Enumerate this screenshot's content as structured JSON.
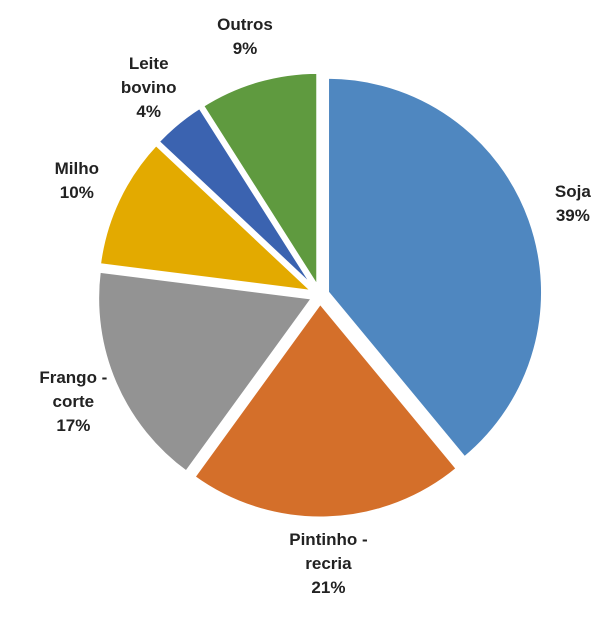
{
  "chart_data": {
    "type": "pie",
    "categories": [
      "Soja",
      "Pintinho - recria",
      "Frango - corte",
      "Milho",
      "Leite bovino",
      "Outros"
    ],
    "values": [
      39,
      21,
      17,
      10,
      4,
      9
    ],
    "value_labels": [
      "39%",
      "21%",
      "17%",
      "10%",
      "4%",
      "9%"
    ],
    "colors": [
      "#4f87c0",
      "#d46f2a",
      "#939393",
      "#e3aa00",
      "#3b63b0",
      "#5f9a3f"
    ]
  }
}
